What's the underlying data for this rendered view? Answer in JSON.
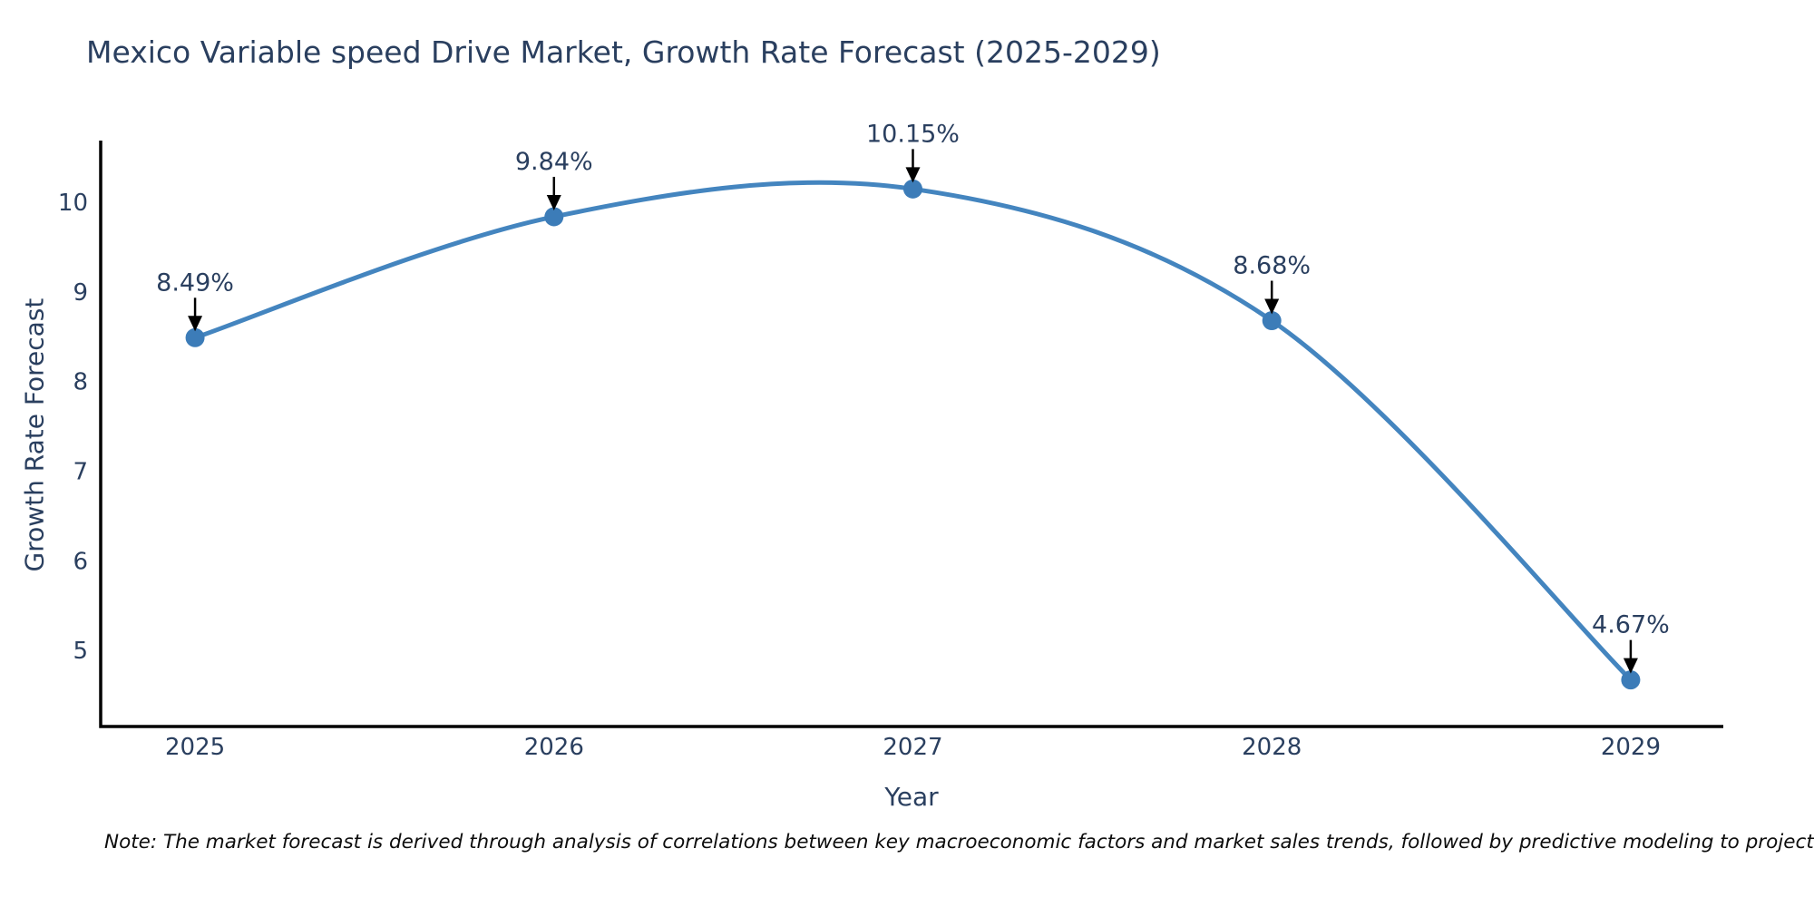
{
  "chart_data": {
    "type": "line",
    "title": "Mexico Variable speed Drive Market, Growth Rate Forecast (2025-2029)",
    "xlabel": "Year",
    "ylabel": "Growth Rate Forecast",
    "categories": [
      "2025",
      "2026",
      "2027",
      "2028",
      "2029"
    ],
    "values": [
      8.49,
      9.84,
      10.15,
      8.68,
      4.67
    ],
    "point_labels": [
      "8.49%",
      "9.84%",
      "10.15%",
      "8.68%",
      "4.67%"
    ],
    "yticks": [
      5,
      6,
      7,
      8,
      9,
      10
    ],
    "ylim": [
      4.15,
      10.69
    ],
    "x_pad": [
      0.263,
      0.258
    ],
    "grid": false,
    "legend": false,
    "smooth": true,
    "colors": {
      "line": "#4485bf",
      "marker": "#3c7cb8",
      "axis": "#000000",
      "tick_text": "#2a3f5f",
      "annotation_text": "#2a3f5f",
      "arrow": "#000000"
    }
  },
  "note": "Note: The market forecast is derived through analysis of correlations between key macroeconomic factors and market sales trends, followed by predictive modeling to project future sales."
}
